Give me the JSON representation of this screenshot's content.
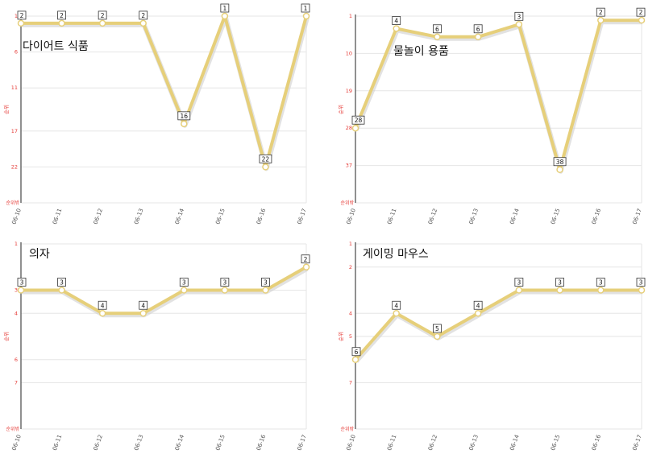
{
  "colors": {
    "line": "#e6cf7a",
    "line_shadow": "#cfcfcf",
    "grid": "#e6e6e6",
    "axis": "#555555",
    "ylabel": "#e53935",
    "tick": "#555555",
    "badge_border": "#333333",
    "marker_fill": "#ffffff"
  },
  "chart_data": [
    {
      "type": "line",
      "title": "다이어트 식품",
      "ylabel": "순위",
      "yaxis_bottom_label": "순위밖",
      "ylim": [
        1,
        27
      ],
      "yaxis_inverted": true,
      "yticks": [
        1,
        6,
        11,
        17,
        22
      ],
      "x": [
        "06-10",
        "06-11",
        "06-12",
        "06-13",
        "06-14",
        "06-15",
        "06-16",
        "06-17"
      ],
      "series": [
        {
          "values": [
            2,
            2,
            2,
            2,
            16,
            1,
            22,
            1
          ]
        }
      ]
    },
    {
      "type": "line",
      "title": "물놀이 용품",
      "ylabel": "순위",
      "yaxis_bottom_label": "순위밖",
      "ylim": [
        1,
        46
      ],
      "yaxis_inverted": true,
      "yticks": [
        1,
        10,
        19,
        28,
        37
      ],
      "x": [
        "06-10",
        "06-11",
        "06-12",
        "06-13",
        "06-14",
        "06-15",
        "06-16",
        "06-17"
      ],
      "series": [
        {
          "values": [
            28,
            4,
            6,
            6,
            3,
            38,
            2,
            2
          ]
        }
      ]
    },
    {
      "type": "line",
      "title": "의자",
      "ylabel": "순위",
      "yaxis_bottom_label": "순위밖",
      "ylim": [
        1,
        9
      ],
      "yaxis_inverted": true,
      "yticks": [
        1,
        3,
        4,
        6,
        7
      ],
      "x": [
        "06-10",
        "06-11",
        "06-12",
        "06-13",
        "06-14",
        "06-15",
        "06-16",
        "06-17"
      ],
      "series": [
        {
          "values": [
            3,
            3,
            4,
            4,
            3,
            3,
            3,
            2
          ]
        }
      ]
    },
    {
      "type": "line",
      "title": "게이밍 마우스",
      "ylabel": "순위",
      "yaxis_bottom_label": "순위밖",
      "ylim": [
        1,
        9
      ],
      "yaxis_inverted": true,
      "yticks": [
        1,
        2,
        4,
        5,
        7
      ],
      "x": [
        "06-10",
        "06-11",
        "06-12",
        "06-13",
        "06-14",
        "06-15",
        "06-16",
        "06-17"
      ],
      "series": [
        {
          "values": [
            6,
            4,
            5,
            4,
            3,
            3,
            3,
            3
          ]
        }
      ]
    }
  ]
}
